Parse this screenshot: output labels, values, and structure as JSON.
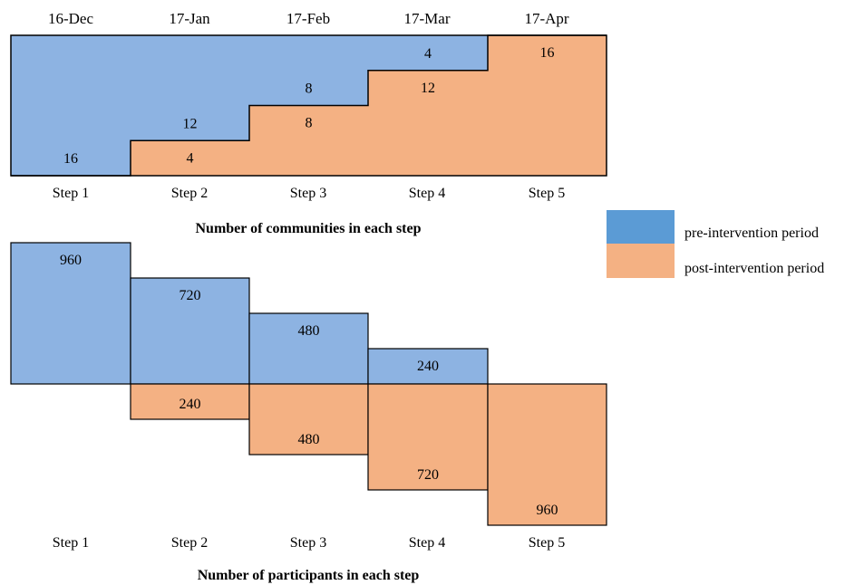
{
  "months": [
    "16-Dec",
    "17-Jan",
    "17-Feb",
    "17-Mar",
    "17-Apr"
  ],
  "steps": [
    "Step 1",
    "Step 2",
    "Step 3",
    "Step 4",
    "Step 5"
  ],
  "colors": {
    "pre": "#8db3e2",
    "post": "#f4b183",
    "pre_legend": "#5b9bd5",
    "post_legend": "#f4b183",
    "outline": "#000000"
  },
  "legend": {
    "pre": "pre-intervention  period",
    "post": "post-intervention  period"
  },
  "chart_data": [
    {
      "type": "step",
      "title": "Number  of communities  in each step",
      "categories": [
        "Step 1",
        "Step 2",
        "Step 3",
        "Step 4",
        "Step 5"
      ],
      "series": [
        {
          "name": "pre-intervention  period",
          "values": [
            16,
            12,
            8,
            4,
            0
          ]
        },
        {
          "name": "post-intervention  period",
          "values": [
            0,
            4,
            8,
            12,
            16
          ]
        }
      ],
      "ylim": [
        0,
        16
      ]
    },
    {
      "type": "step",
      "title": "Number  of participants  in each step",
      "categories": [
        "Step 1",
        "Step 2",
        "Step 3",
        "Step 4",
        "Step 5"
      ],
      "series": [
        {
          "name": "pre-intervention  period",
          "values": [
            960,
            720,
            480,
            240,
            0
          ]
        },
        {
          "name": "post-intervention  period",
          "values": [
            0,
            240,
            480,
            720,
            960
          ]
        }
      ]
    }
  ]
}
